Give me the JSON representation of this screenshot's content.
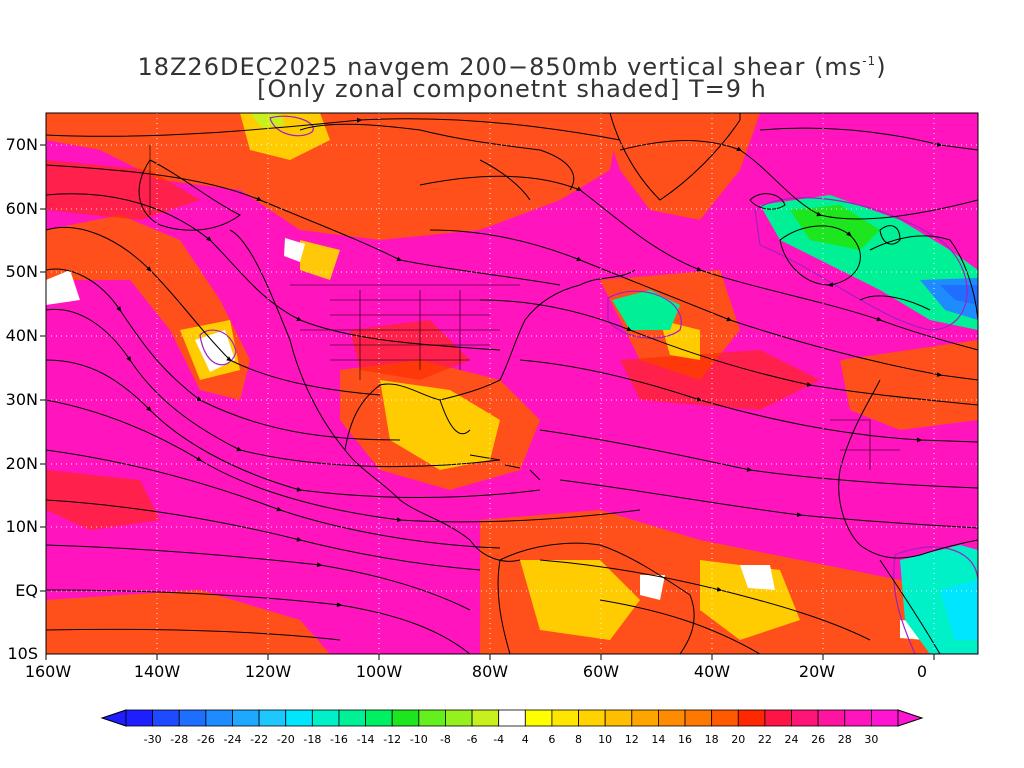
{
  "title": {
    "line1_prefix": "18Z26DEC2025 navgem 200−850mb vertical shear (ms",
    "line1_sup": "-1",
    "line1_suffix": ")",
    "line2": "[Only zonal componetnt shaded] T=9 h"
  },
  "axes": {
    "lat_labels": [
      "70N",
      "60N",
      "50N",
      "40N",
      "30N",
      "20N",
      "10N",
      "EQ",
      "10S"
    ],
    "lon_labels": [
      "160W",
      "140W",
      "120W",
      "100W",
      "80W",
      "60W",
      "40W",
      "20W",
      "0"
    ]
  },
  "colorbar": {
    "labels": [
      "-30",
      "-28",
      "-26",
      "-24",
      "-22",
      "-20",
      "-18",
      "-16",
      "-14",
      "-12",
      "-10",
      "-8",
      "-6",
      "-4",
      "4",
      "6",
      "8",
      "10",
      "12",
      "14",
      "16",
      "18",
      "20",
      "22",
      "24",
      "26",
      "28",
      "30"
    ],
    "colors": [
      "#1e1eff",
      "#1e4bff",
      "#1e6eff",
      "#1e8cff",
      "#1ea8ff",
      "#1ec8ff",
      "#00e6ff",
      "#00f0c8",
      "#00f096",
      "#00f064",
      "#1ee61e",
      "#64f01e",
      "#96f01e",
      "#c8f01e",
      "#ffffff",
      "#ffff00",
      "#ffe600",
      "#ffd200",
      "#ffbe00",
      "#ffa500",
      "#ff8c00",
      "#ff7800",
      "#ff5a00",
      "#ff2800",
      "#ff1446",
      "#ff1478",
      "#ff14a0",
      "#ff14be",
      "#ff14d2"
    ]
  },
  "map": {
    "background_color": "#ff14be",
    "grid_color": "#ffffff",
    "contour_color": "#a020c0",
    "streamline_color": "#000000"
  }
}
